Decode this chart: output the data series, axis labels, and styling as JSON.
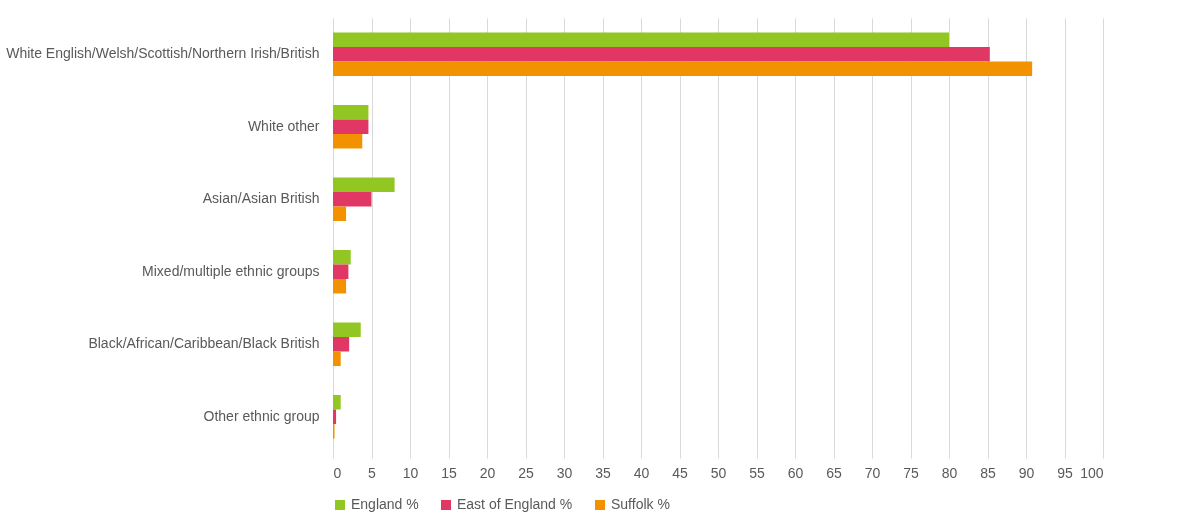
{
  "chart_data": {
    "type": "bar",
    "orientation": "horizontal",
    "categories": [
      "White English/Welsh/Scottish/Northern Irish/British",
      "White other",
      "Asian/Asian British",
      "Mixed/multiple ethnic groups",
      "Black/African/Caribbean/Black British",
      "Other ethnic group"
    ],
    "series": [
      {
        "name": "England %",
        "color": "#92c623",
        "values": [
          80.0,
          4.6,
          8.0,
          2.3,
          3.6,
          1.0
        ]
      },
      {
        "name": "East of England %",
        "color": "#e03764",
        "values": [
          85.3,
          4.6,
          5.0,
          2.0,
          2.1,
          0.4
        ]
      },
      {
        "name": "Suffolk %",
        "color": "#f39200",
        "values": [
          90.8,
          3.8,
          1.7,
          1.7,
          1.0,
          0.2
        ]
      }
    ],
    "xlim": [
      0,
      100
    ],
    "xticks": [
      0,
      5,
      10,
      15,
      20,
      25,
      30,
      35,
      40,
      45,
      50,
      55,
      60,
      65,
      70,
      75,
      80,
      85,
      90,
      95,
      100
    ],
    "grid": "x",
    "legend": "bottom"
  }
}
